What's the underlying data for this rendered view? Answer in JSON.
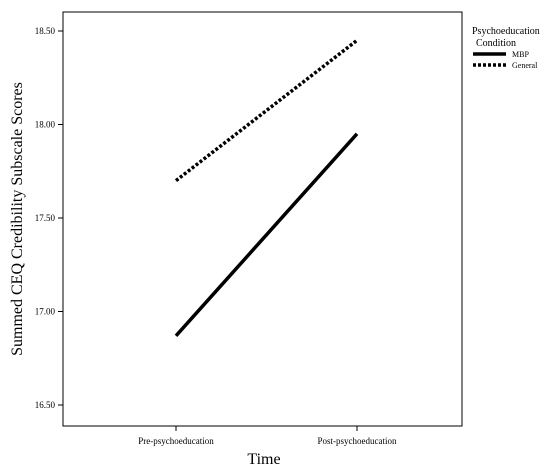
{
  "chart_data": {
    "type": "line",
    "categories": [
      "Pre-psychoeducation",
      "Post-psychoeducation"
    ],
    "series": [
      {
        "name": "MBP",
        "values": [
          16.87,
          17.95
        ],
        "color": "#000000",
        "style": "solid"
      },
      {
        "name": "General",
        "values": [
          17.7,
          18.45
        ],
        "color": "#000000",
        "style": "dotted"
      }
    ],
    "xlabel": "Time",
    "ylabel": "Summed CEQ Credibility Subscale Scores",
    "ylim": [
      16.45,
      18.55
    ],
    "yticks": [
      "16.50",
      "17.00",
      "17.50",
      "18.00",
      "18.50"
    ],
    "legend": {
      "title_line1": "Psychoeducation",
      "title_line2": "Condition",
      "placement": "top-right-outside"
    },
    "grid": false
  }
}
